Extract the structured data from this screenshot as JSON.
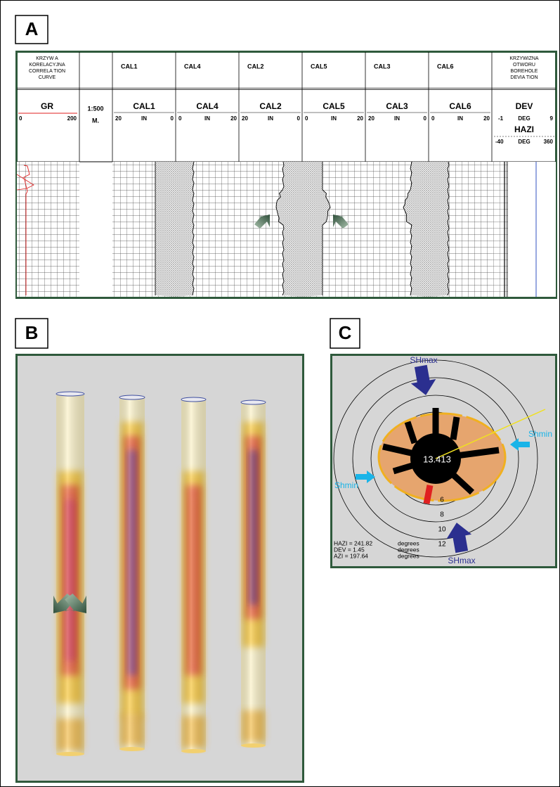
{
  "panels": {
    "a": "A",
    "b": "B",
    "c": "C"
  },
  "log": {
    "correlation_label": [
      "KRZYW A",
      "KORELACYJNA",
      "CORRELA  TION",
      "CURVE"
    ],
    "deviation_label": [
      "KRZYWIZNA",
      "OTWORU",
      "BOREHOLE",
      "DEVIA TION"
    ],
    "gr": {
      "name": "GR",
      "left": "0",
      "right": "200"
    },
    "depth": {
      "scale": "1:500",
      "unit": "M."
    },
    "calipers": [
      {
        "name": "CAL1",
        "left": "20",
        "unit": "IN",
        "right": "0"
      },
      {
        "name": "CAL4",
        "left": "0",
        "unit": "IN",
        "right": "20"
      },
      {
        "name": "CAL2",
        "left": "20",
        "unit": "IN",
        "right": "0"
      },
      {
        "name": "CAL5",
        "left": "0",
        "unit": "IN",
        "right": "20"
      },
      {
        "name": "CAL3",
        "left": "20",
        "unit": "IN",
        "right": "0"
      },
      {
        "name": "CAL6",
        "left": "0",
        "unit": "IN",
        "right": "20"
      }
    ],
    "dev": {
      "name": "DEV",
      "left": "-1",
      "unit": "DEG",
      "right": "9"
    },
    "hazi": {
      "name": "HAZI",
      "left": "-40",
      "unit": "DEG",
      "right": "360"
    }
  },
  "polar": {
    "shmax": [
      "SHmax",
      "SHmax"
    ],
    "shmin": [
      "Shmin",
      "Shmin"
    ],
    "center": "13.413",
    "rings": [
      "6",
      "8",
      "10",
      "12"
    ],
    "stats": [
      {
        "label": "HAZI = 241.82",
        "unit": "degrees"
      },
      {
        "label": "DEV  =   1.45",
        "unit": "degrees"
      },
      {
        "label": "AZI  = 197.64",
        "unit": "degrees"
      }
    ]
  }
}
